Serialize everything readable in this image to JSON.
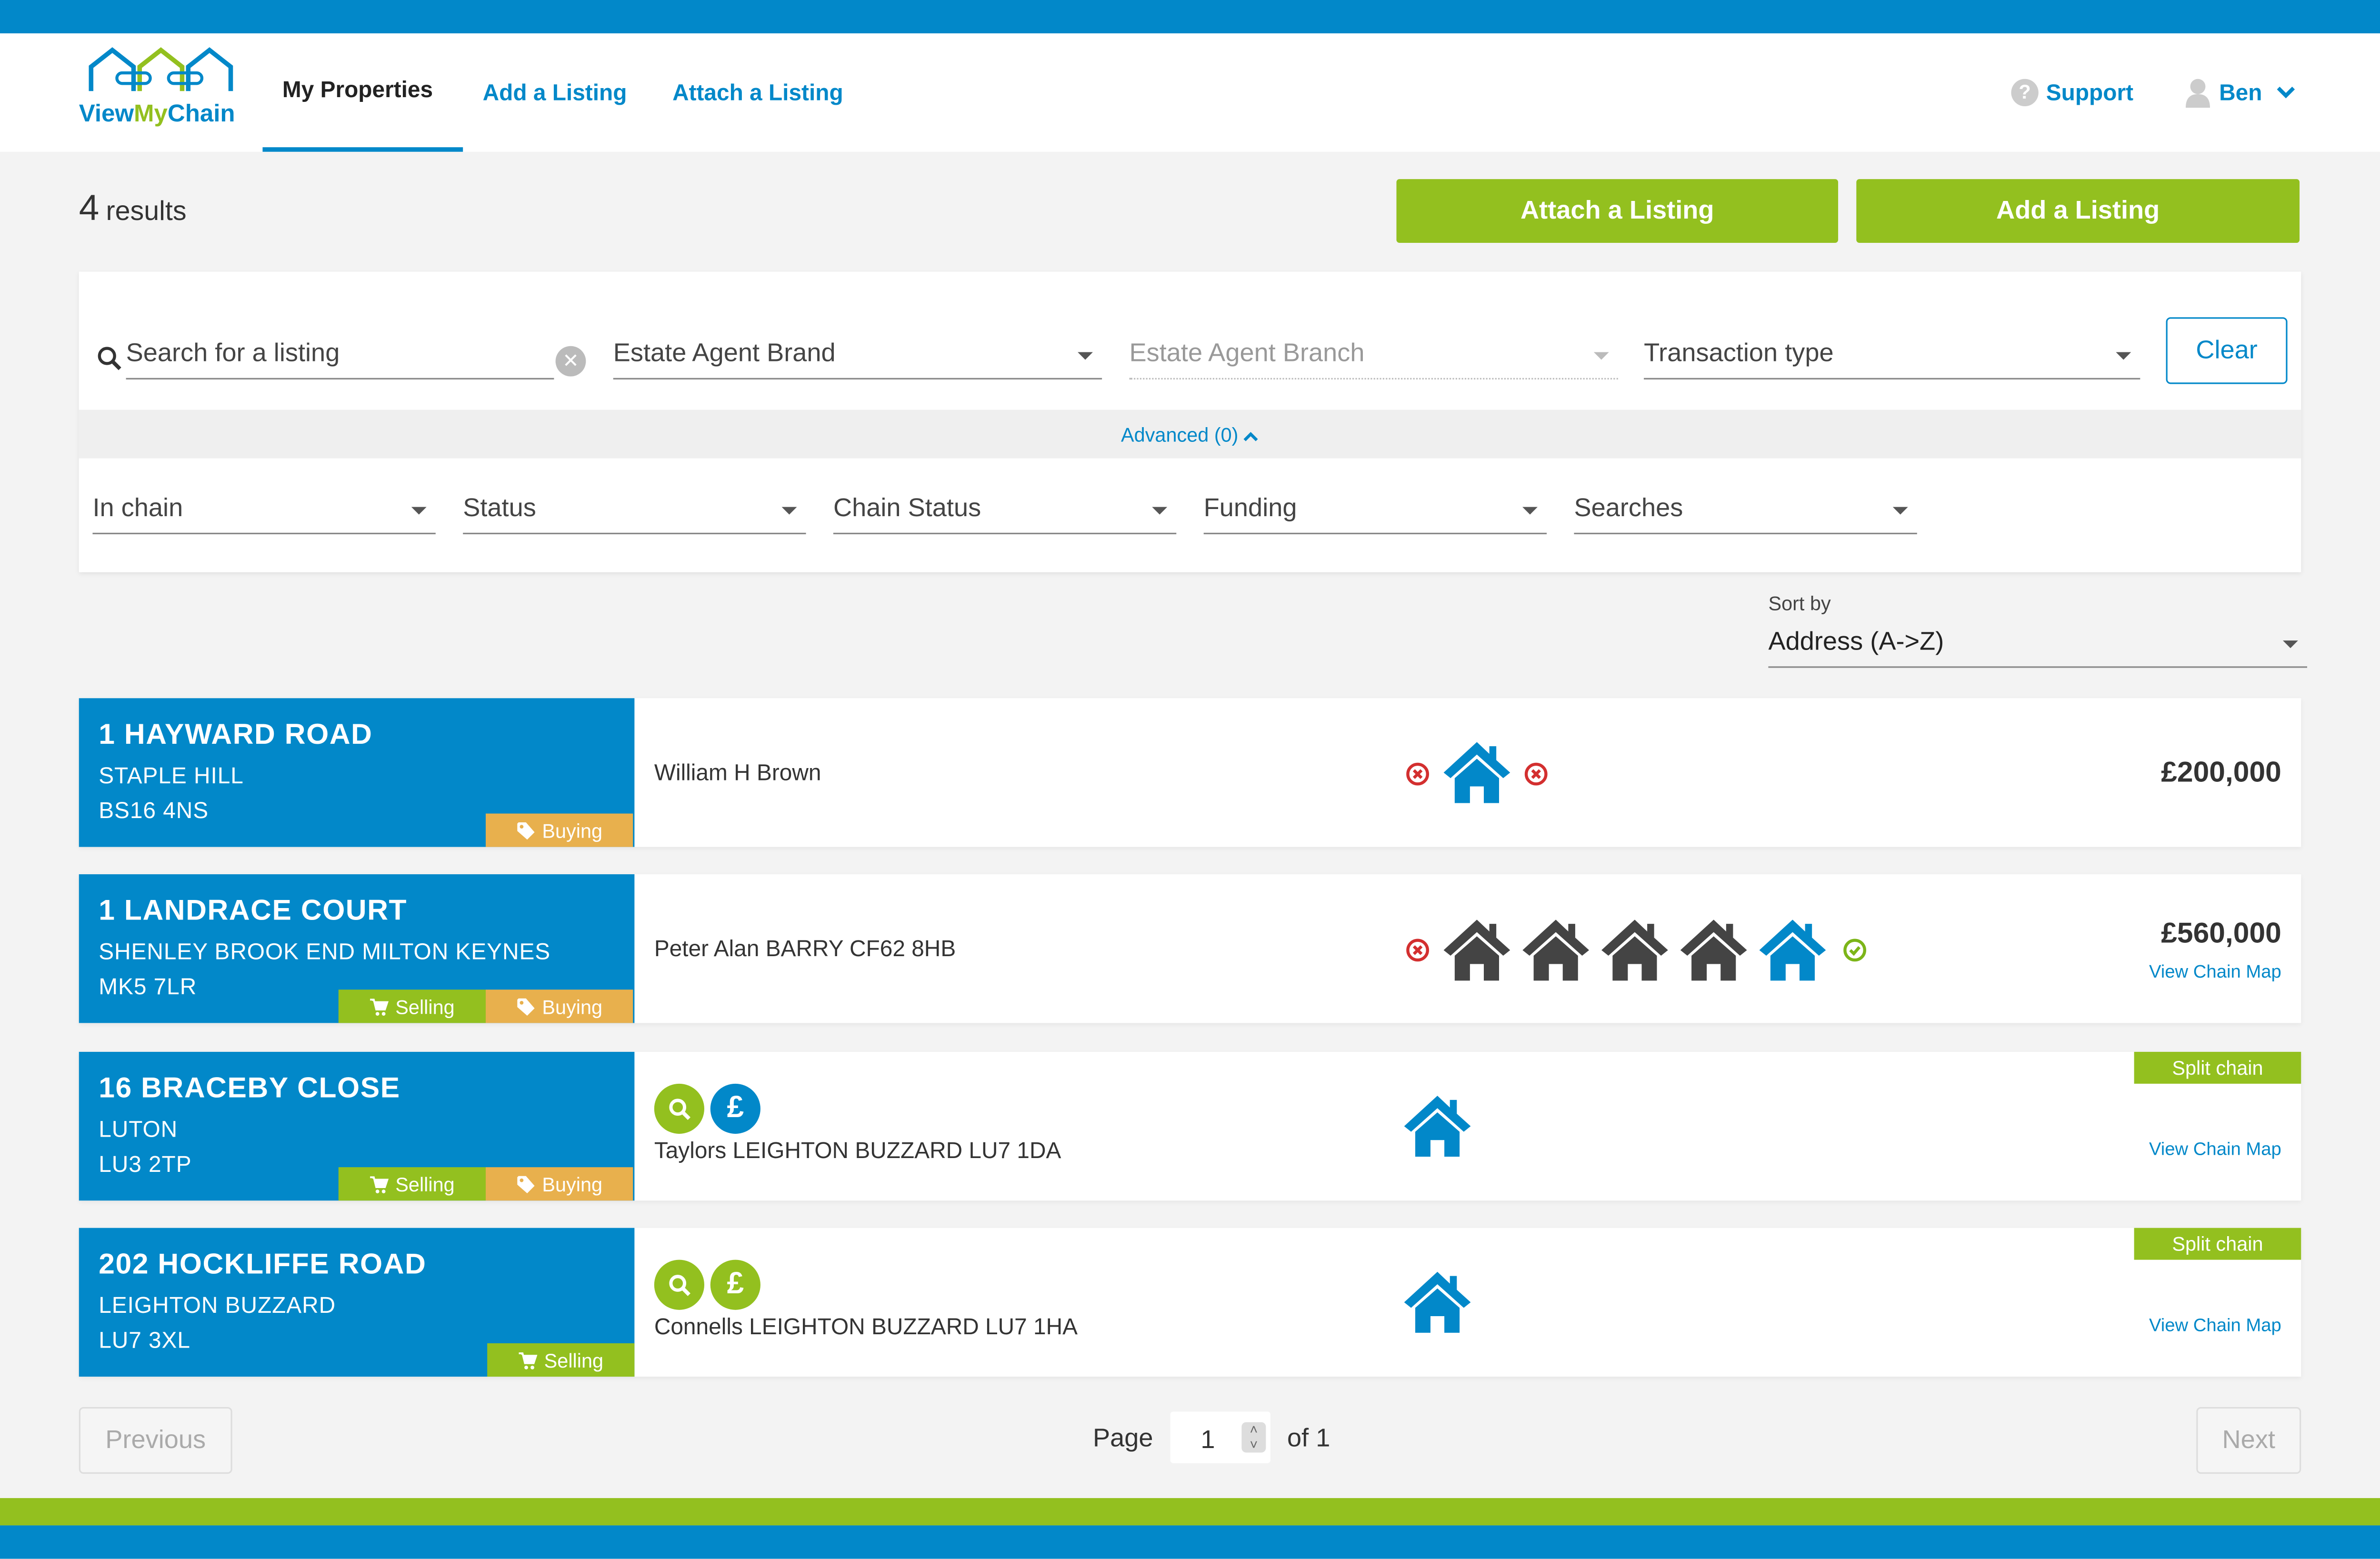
{
  "nav": {
    "logo": [
      "View",
      "My",
      "Chain"
    ],
    "links": [
      "My Properties",
      "Add a Listing",
      "Attach a Listing"
    ],
    "support": "Support",
    "user": "Ben"
  },
  "header": {
    "count": 4,
    "count_label": "results",
    "buttons": [
      "Attach a Listing",
      "Add a Listing"
    ]
  },
  "filters": {
    "search": "Search for a listing",
    "row1": [
      "Estate Agent Brand",
      "Estate Agent Branch",
      "Transaction type"
    ],
    "clear": "Clear",
    "advanced": "Advanced (0)",
    "row2": [
      "In chain",
      "Status",
      "Chain Status",
      "Funding",
      "Searches"
    ]
  },
  "sort": {
    "label": "Sort by",
    "value": "Address (A->Z)"
  },
  "listings": [
    {
      "address": "1 HAYWARD ROAD",
      "area": "STAPLE HILL",
      "postcode": "BS16 4NS",
      "tags": [
        "Buying"
      ],
      "agent": "William H Brown",
      "price": "£200,000"
    },
    {
      "address": "1 LANDRACE COURT",
      "area": "SHENLEY BROOK END MILTON KEYNES",
      "postcode": "MK5 7LR",
      "tags": [
        "Selling",
        "Buying"
      ],
      "agent": "Peter Alan BARRY CF62 8HB",
      "price": "£560,000",
      "link": "View Chain Map"
    },
    {
      "address": "16 BRACEBY CLOSE",
      "area": "LUTON",
      "postcode": "LU3 2TP",
      "tags": [
        "Selling",
        "Buying"
      ],
      "agent": "Taylors LEIGHTON BUZZARD LU7 1DA",
      "badge": "Split chain",
      "funding_icon": "£",
      "link": "View Chain Map"
    },
    {
      "address": "202 HOCKLIFFE ROAD",
      "area": "LEIGHTON BUZZARD",
      "postcode": "LU7 3XL",
      "tags": [
        "Selling"
      ],
      "agent": "Connells LEIGHTON BUZZARD LU7 1HA",
      "badge": "Split chain",
      "funding_icon": "£",
      "link": "View Chain Map"
    }
  ],
  "pagination": {
    "previous": "Previous",
    "page_label": "Page",
    "page": 1,
    "of": "of 1",
    "next": "Next"
  }
}
